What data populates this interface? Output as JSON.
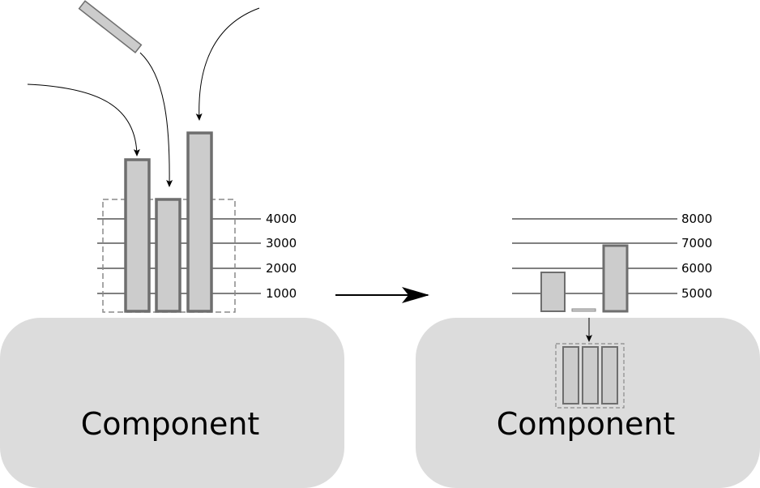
{
  "left_panel": {
    "component_label": "Component",
    "ticks": [
      "4000",
      "3000",
      "2000",
      "1000"
    ]
  },
  "right_panel": {
    "component_label": "Component",
    "ticks": [
      "8000",
      "7000",
      "6000",
      "5000"
    ]
  },
  "colors": {
    "component_fill": "#dcdcdc",
    "bar_fill": "#cccccc",
    "bar_stroke": "#6e6e6e",
    "dashed_box": "#8a8a8a",
    "line": "#000000"
  }
}
